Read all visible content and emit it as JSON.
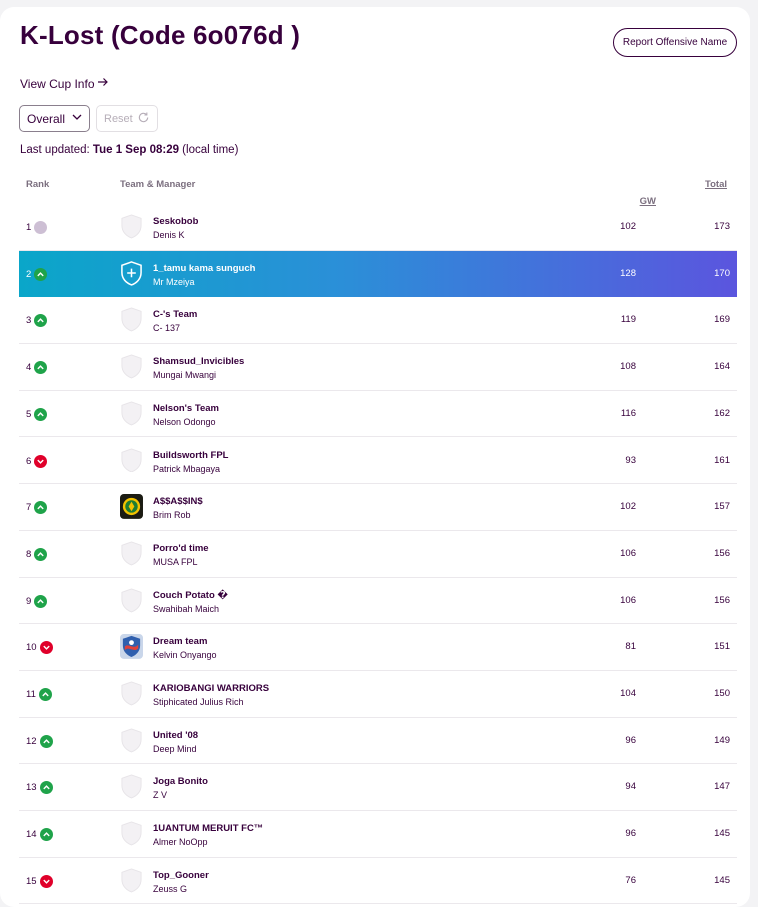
{
  "header": {
    "title": "K-Lost (Code 6o076d )",
    "report_label": "Report Offensive Name",
    "cup_link_label": "View Cup Info"
  },
  "filters": {
    "selected": "Overall",
    "reset_label": "Reset"
  },
  "last_updated": {
    "prefix": "Last updated: ",
    "value": "Tue 1 Sep 08:29",
    "suffix": " (local time)"
  },
  "table": {
    "columns": {
      "rank": "Rank",
      "team": "Team & Manager",
      "gw": "GW",
      "total": "Total"
    },
    "rows": [
      {
        "rank": "1",
        "movement": "same",
        "team": "Seskobob",
        "manager": "Denis K",
        "gw": "102",
        "total": "173",
        "badge": "shield-placeholder"
      },
      {
        "rank": "2",
        "movement": "up",
        "team": "1_tamu kama sunguch",
        "manager": "Mr Mzeiya",
        "gw": "128",
        "total": "170",
        "badge": "shield-plus",
        "highlight": true
      },
      {
        "rank": "3",
        "movement": "up",
        "team": "C-'s Team",
        "manager": "C- 137",
        "gw": "119",
        "total": "169",
        "badge": "shield-placeholder"
      },
      {
        "rank": "4",
        "movement": "up",
        "team": "Shamsud_Invicibles",
        "manager": "Mungai Mwangi",
        "gw": "108",
        "total": "164",
        "badge": "shield-placeholder"
      },
      {
        "rank": "5",
        "movement": "up",
        "team": "Nelson's Team",
        "manager": "Nelson Odongo",
        "gw": "116",
        "total": "162",
        "badge": "shield-placeholder"
      },
      {
        "rank": "6",
        "movement": "down",
        "team": "Buildsworth FPL",
        "manager": "Patrick Mbagaya",
        "gw": "93",
        "total": "161",
        "badge": "shield-placeholder"
      },
      {
        "rank": "7",
        "movement": "up",
        "team": "A$$A$$IN$",
        "manager": "Brim Rob",
        "gw": "102",
        "total": "157",
        "badge": "custom-crest-green"
      },
      {
        "rank": "8",
        "movement": "up",
        "team": "Porro'd time",
        "manager": "MUSA FPL",
        "gw": "106",
        "total": "156",
        "badge": "shield-placeholder"
      },
      {
        "rank": "9",
        "movement": "up",
        "team": "Couch Potato �",
        "manager": "Swahibah Maich",
        "gw": "106",
        "total": "156",
        "badge": "shield-placeholder"
      },
      {
        "rank": "10",
        "movement": "down",
        "team": "Dream team",
        "manager": "Kelvin Onyango",
        "gw": "81",
        "total": "151",
        "badge": "custom-crest-blue"
      },
      {
        "rank": "11",
        "movement": "up",
        "team": "KARIOBANGI WARRIORS",
        "manager": "Stiphicated Julius Rich",
        "gw": "104",
        "total": "150",
        "badge": "shield-placeholder"
      },
      {
        "rank": "12",
        "movement": "up",
        "team": "United '08",
        "manager": "Deep Mind",
        "gw": "96",
        "total": "149",
        "badge": "shield-placeholder"
      },
      {
        "rank": "13",
        "movement": "up",
        "team": "Joga Bonito",
        "manager": "Z V",
        "gw": "94",
        "total": "147",
        "badge": "shield-placeholder"
      },
      {
        "rank": "14",
        "movement": "up",
        "team": "1UANTUM MERUIT FC™",
        "manager": "Almer NoOpp",
        "gw": "96",
        "total": "145",
        "badge": "shield-placeholder"
      },
      {
        "rank": "15",
        "movement": "down",
        "team": "Top_Gooner",
        "manager": "Zeuss G",
        "gw": "76",
        "total": "145",
        "badge": "shield-placeholder"
      }
    ]
  },
  "colors": {
    "primary": "#37003c",
    "up": "#1fa34a",
    "down": "#e0002a",
    "same": "#cdbfd4",
    "highlight_start": "#0aa6c9",
    "highlight_end": "#5b55de"
  }
}
